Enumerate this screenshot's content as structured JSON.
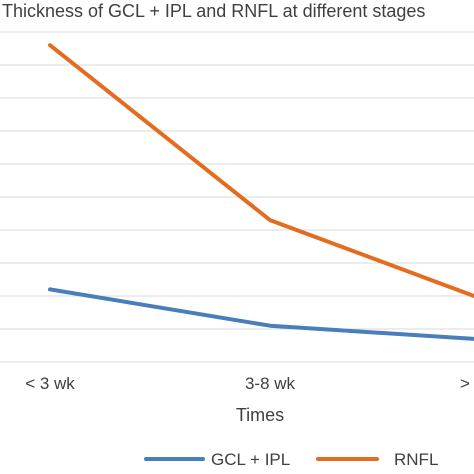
{
  "chart_data": {
    "type": "line",
    "title": "Thickness of GCL + IPL and RNFL at different stages",
    "xlabel": "Times",
    "ylabel": "",
    "categories": [
      "< 3 wk",
      "3-8 wk",
      ">"
    ],
    "ylim": [
      0,
      10
    ],
    "grid": true,
    "legend_position": "bottom",
    "series": [
      {
        "name": "GCL + IPL",
        "values": [
          2.2,
          1.1,
          0.7
        ],
        "color": "#4a7ebb"
      },
      {
        "name": "RNFL",
        "values": [
          9.6,
          4.3,
          2.0
        ],
        "color": "#e46c1f"
      }
    ]
  }
}
